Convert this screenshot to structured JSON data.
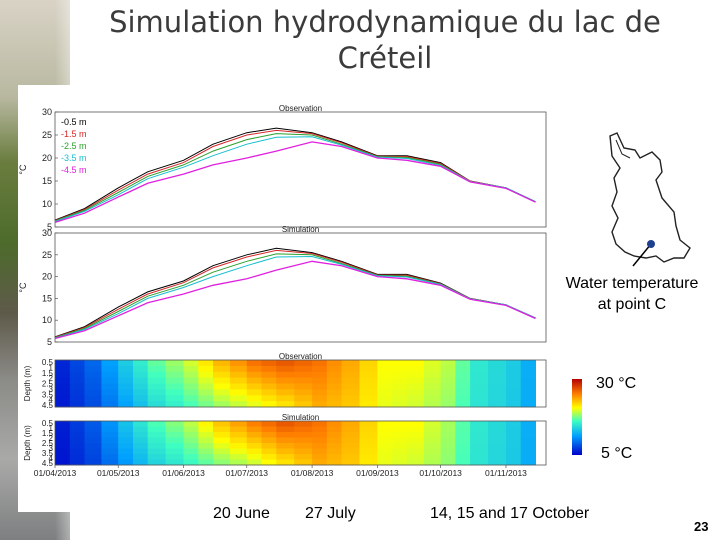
{
  "slide": {
    "title_line1": "Simulation hydrodynamique du lac de",
    "title_line2": "Créteil",
    "point_label_line1": "Water temperature",
    "point_label_line2": "at point C",
    "colorbar_max": "30 °C",
    "colorbar_min": "5 °C",
    "event_1": "20 June",
    "event_2": "27 July",
    "event_3": "14, 15 and 17 October",
    "slide_number": "23"
  },
  "chart_data": [
    {
      "type": "line",
      "title": "Observation",
      "ylabel": "°C",
      "ylim": [
        5,
        30
      ],
      "yticks": [
        5,
        10,
        15,
        20,
        25,
        30
      ],
      "xlim": [
        "01/04/2013",
        "20/11/2013"
      ],
      "legend_placement": "top-left",
      "x": [
        "01/04/2013",
        "15/04/2013",
        "01/05/2013",
        "15/05/2013",
        "01/06/2013",
        "15/06/2013",
        "01/07/2013",
        "15/07/2013",
        "01/08/2013",
        "15/08/2013",
        "01/09/2013",
        "15/09/2013",
        "01/10/2013",
        "15/10/2013",
        "01/11/2013",
        "15/11/2013"
      ],
      "series": [
        {
          "name": "-0.5 m",
          "color": "#000000",
          "values": [
            6.5,
            9,
            13.5,
            17,
            19.5,
            23,
            25.5,
            26.5,
            25.5,
            23.5,
            20.5,
            20.5,
            19,
            15,
            13.5,
            10.5
          ]
        },
        {
          "name": "-1.5 m",
          "color": "#d62728",
          "values": [
            6.4,
            8.8,
            13,
            16.5,
            19,
            22.5,
            25,
            26,
            25.3,
            23.3,
            20.4,
            20.3,
            18.8,
            15,
            13.5,
            10.5
          ]
        },
        {
          "name": "-2.5 m",
          "color": "#2ca02c",
          "values": [
            6.3,
            8.6,
            12.5,
            16,
            18.5,
            21.5,
            24,
            25.3,
            25,
            23,
            20.3,
            20.1,
            18.6,
            14.9,
            13.5,
            10.5
          ]
        },
        {
          "name": "-3.5 m",
          "color": "#17becf",
          "values": [
            6.2,
            8.4,
            12,
            15.5,
            18,
            20.5,
            23,
            24.5,
            24.6,
            22.8,
            20.2,
            19.9,
            18.4,
            14.9,
            13.5,
            10.5
          ]
        },
        {
          "name": "-4.5 m",
          "color": "#e020e0",
          "values": [
            6.0,
            8.0,
            11.5,
            14.5,
            16.5,
            18.5,
            20,
            21.5,
            23.5,
            22.5,
            20,
            19.5,
            18.2,
            14.8,
            13.4,
            10.4
          ]
        }
      ]
    },
    {
      "type": "line",
      "title": "Simulation",
      "ylabel": "°C",
      "ylim": [
        5,
        30
      ],
      "yticks": [
        5,
        10,
        15,
        20,
        25,
        30
      ],
      "xlim": [
        "01/04/2013",
        "20/11/2013"
      ],
      "x": [
        "01/04/2013",
        "15/04/2013",
        "01/05/2013",
        "15/05/2013",
        "01/06/2013",
        "15/06/2013",
        "01/07/2013",
        "15/07/2013",
        "01/08/2013",
        "15/08/2013",
        "01/09/2013",
        "15/09/2013",
        "01/10/2013",
        "15/10/2013",
        "01/11/2013",
        "15/11/2013"
      ],
      "series": [
        {
          "name": "-0.5 m",
          "color": "#000000",
          "values": [
            6.2,
            8.5,
            13,
            16.5,
            19,
            22.5,
            25,
            26.5,
            25.5,
            23.5,
            20.5,
            20.5,
            18.5,
            15,
            13.5,
            10.5
          ]
        },
        {
          "name": "-1.5 m",
          "color": "#d62728",
          "values": [
            6.1,
            8.3,
            12.5,
            16,
            18.6,
            22,
            24.5,
            26,
            25.3,
            23.3,
            20.4,
            20.3,
            18.4,
            15,
            13.5,
            10.5
          ]
        },
        {
          "name": "-2.5 m",
          "color": "#2ca02c",
          "values": [
            6.0,
            8.1,
            12,
            15.5,
            18,
            21,
            23.5,
            25.2,
            25,
            23,
            20.3,
            20.1,
            18.3,
            14.9,
            13.5,
            10.5
          ]
        },
        {
          "name": "-3.5 m",
          "color": "#17becf",
          "values": [
            5.9,
            7.9,
            11.5,
            15,
            17.5,
            20,
            22.5,
            24.5,
            24.6,
            22.8,
            20.2,
            19.9,
            18.2,
            14.9,
            13.5,
            10.5
          ]
        },
        {
          "name": "-4.5 m",
          "color": "#e020e0",
          "values": [
            5.8,
            7.6,
            11,
            14,
            16,
            18,
            19.5,
            21.5,
            23.5,
            22.5,
            20,
            19.5,
            18,
            14.8,
            13.4,
            10.4
          ]
        }
      ]
    },
    {
      "type": "heatmap",
      "title": "Observation",
      "ylabel": "Depth (m)",
      "yticks": [
        "0.5",
        "1",
        "1.5",
        "2",
        "2.5",
        "3",
        "3.5",
        "4",
        "4.5"
      ],
      "colorbar": [
        "5 °C",
        "30 °C"
      ],
      "x": [
        "01/04/2013",
        "15/04/2013",
        "01/05/2013",
        "15/05/2013",
        "01/06/2013",
        "15/06/2013",
        "01/07/2013",
        "15/07/2013",
        "01/08/2013",
        "15/08/2013",
        "01/09/2013",
        "15/09/2013",
        "01/10/2013",
        "15/10/2013",
        "01/11/2013",
        "15/11/2013"
      ],
      "surface": [
        6.5,
        9,
        13.5,
        17,
        19.5,
        23,
        25.5,
        26.5,
        25.5,
        23.5,
        20.5,
        20.5,
        19,
        15,
        13.5,
        10.5
      ],
      "bottom": [
        6.0,
        8.0,
        11.5,
        14.5,
        16.5,
        18.5,
        20,
        21.5,
        23.5,
        22.5,
        20,
        19.5,
        18.2,
        14.8,
        13.4,
        10.4
      ]
    },
    {
      "type": "heatmap",
      "title": "Simulation",
      "ylabel": "Depth (m)",
      "yticks": [
        "0.5",
        "1",
        "1.5",
        "2",
        "2.5",
        "3",
        "3.5",
        "4",
        "4.5"
      ],
      "xlabels": [
        "01/04/2013",
        "01/05/2013",
        "01/06/2013",
        "01/07/2013",
        "01/08/2013",
        "01/09/2013",
        "01/10/2013",
        "01/11/2013"
      ],
      "colorbar": [
        "5 °C",
        "30 °C"
      ],
      "x": [
        "01/04/2013",
        "15/04/2013",
        "01/05/2013",
        "15/05/2013",
        "01/06/2013",
        "15/06/2013",
        "01/07/2013",
        "15/07/2013",
        "01/08/2013",
        "15/08/2013",
        "01/09/2013",
        "15/09/2013",
        "01/10/2013",
        "15/10/2013",
        "01/11/2013",
        "15/11/2013"
      ],
      "surface": [
        6.2,
        8.5,
        13,
        16.5,
        19,
        22.5,
        25,
        26.5,
        25.5,
        23.5,
        20.5,
        20.5,
        18.5,
        15,
        13.5,
        10.5
      ],
      "bottom": [
        5.8,
        7.6,
        11,
        14,
        16,
        18,
        19.5,
        21.5,
        23.5,
        22.5,
        20,
        19.5,
        18,
        14.8,
        13.4,
        10.4
      ]
    }
  ]
}
